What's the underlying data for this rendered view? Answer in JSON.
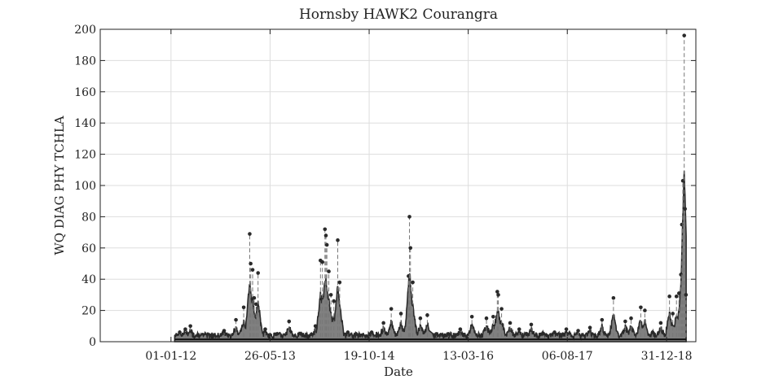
{
  "chart_data": {
    "type": "scatter",
    "title": "Hornsby HAWK2 Courangra",
    "xlabel": "Date",
    "ylabel": "WQ DIAG PHY TCHLA",
    "xlim": [
      "2011-01-01",
      "2019-05-31"
    ],
    "ylim": [
      0,
      200
    ],
    "x_ticks": [
      "01-01-12",
      "26-05-13",
      "19-10-14",
      "13-03-16",
      "06-08-17",
      "31-12-18"
    ],
    "x_tick_dates": [
      "2012-01-01",
      "2013-05-26",
      "2014-10-19",
      "2016-03-13",
      "2017-08-06",
      "2018-12-31"
    ],
    "y_ticks": [
      0,
      20,
      40,
      60,
      80,
      100,
      120,
      140,
      160,
      180,
      200
    ],
    "grid": true,
    "colors": {
      "points": "#2a2a2a",
      "envelope": "#808080",
      "grid": "#dddddd"
    },
    "series": [
      {
        "points": [
          [
            "2012-02-15",
            6
          ],
          [
            "2012-03-15",
            8
          ],
          [
            "2012-04-10",
            10
          ],
          [
            "2012-05-20",
            4
          ],
          [
            "2012-08-01",
            3
          ],
          [
            "2012-10-01",
            7
          ],
          [
            "2012-12-01",
            14
          ],
          [
            "2013-01-10",
            22
          ],
          [
            "2013-02-10",
            69
          ],
          [
            "2013-02-15",
            50
          ],
          [
            "2013-02-25",
            46
          ],
          [
            "2013-03-05",
            28
          ],
          [
            "2013-03-15",
            24
          ],
          [
            "2013-03-25",
            44
          ],
          [
            "2013-05-01",
            8
          ],
          [
            "2013-07-01",
            5
          ],
          [
            "2013-09-01",
            13
          ],
          [
            "2013-11-01",
            5
          ],
          [
            "2014-01-15",
            10
          ],
          [
            "2014-02-10",
            52
          ],
          [
            "2014-02-20",
            51
          ],
          [
            "2014-03-05",
            72
          ],
          [
            "2014-03-10",
            68
          ],
          [
            "2014-03-15",
            62
          ],
          [
            "2014-03-25",
            45
          ],
          [
            "2014-04-05",
            30
          ],
          [
            "2014-04-20",
            26
          ],
          [
            "2014-05-10",
            65
          ],
          [
            "2014-05-20",
            38
          ],
          [
            "2014-07-01",
            6
          ],
          [
            "2014-09-01",
            4
          ],
          [
            "2014-11-01",
            6
          ],
          [
            "2015-01-01",
            12
          ],
          [
            "2015-02-10",
            21
          ],
          [
            "2015-04-01",
            18
          ],
          [
            "2015-05-10",
            42
          ],
          [
            "2015-05-15",
            80
          ],
          [
            "2015-05-20",
            60
          ],
          [
            "2015-06-01",
            38
          ],
          [
            "2015-07-10",
            15
          ],
          [
            "2015-08-15",
            17
          ],
          [
            "2015-10-01",
            5
          ],
          [
            "2015-12-01",
            5
          ],
          [
            "2016-02-01",
            8
          ],
          [
            "2016-04-01",
            16
          ],
          [
            "2016-06-15",
            15
          ],
          [
            "2016-07-20",
            16
          ],
          [
            "2016-08-10",
            32
          ],
          [
            "2016-08-15",
            30
          ],
          [
            "2016-09-01",
            21
          ],
          [
            "2016-10-15",
            12
          ],
          [
            "2016-12-01",
            8
          ],
          [
            "2017-02-01",
            11
          ],
          [
            "2017-04-01",
            5
          ],
          [
            "2017-06-01",
            6
          ],
          [
            "2017-08-01",
            8
          ],
          [
            "2017-10-01",
            7
          ],
          [
            "2017-12-01",
            9
          ],
          [
            "2018-02-01",
            14
          ],
          [
            "2018-04-01",
            28
          ],
          [
            "2018-06-01",
            13
          ],
          [
            "2018-07-01",
            15
          ],
          [
            "2018-08-20",
            22
          ],
          [
            "2018-09-10",
            20
          ],
          [
            "2018-10-20",
            6
          ],
          [
            "2018-12-01",
            12
          ],
          [
            "2019-01-15",
            29
          ],
          [
            "2019-02-01",
            18
          ],
          [
            "2019-02-20",
            29
          ],
          [
            "2019-03-05",
            31
          ],
          [
            "2019-03-15",
            43
          ],
          [
            "2019-03-20",
            75
          ],
          [
            "2019-03-25",
            103
          ],
          [
            "2019-04-01",
            196
          ],
          [
            "2019-04-05",
            85
          ],
          [
            "2019-04-10",
            30
          ]
        ]
      }
    ]
  }
}
